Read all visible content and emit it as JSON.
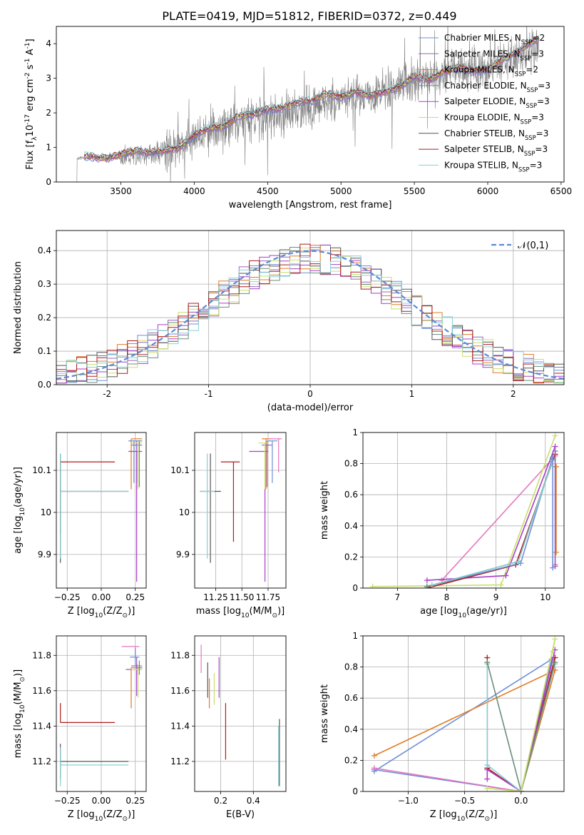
{
  "figure_title": "PLATE=0419, MJD=51812, FIBERID=0372, z=0.449",
  "chart_data": [
    {
      "id": "spectrum",
      "type": "line",
      "title": "PLATE=0419, MJD=51812, FIBERID=0372, z=0.449",
      "xlabel": "wavelength [Angstrom, rest frame]",
      "ylabel": "Flux [f$_\\lambda$10$^{-17}$ erg cm$^{-2}$ s$^{-1}$ A$^{-1}$]",
      "xlim": [
        3060,
        6520
      ],
      "ylim": [
        0,
        4.5
      ],
      "xticks": [
        3500,
        4000,
        4500,
        5000,
        5500,
        6000,
        6500
      ],
      "yticks": [
        0,
        1,
        2,
        3,
        4
      ],
      "grid": false,
      "legend_position": "top-right",
      "observed": {
        "color": "#808080",
        "x_range": [
          3200,
          6350
        ],
        "continuum": [
          [
            3200,
            0.7
          ],
          [
            3500,
            0.7
          ],
          [
            3800,
            0.9
          ],
          [
            4000,
            1.3
          ],
          [
            4300,
            1.75
          ],
          [
            4700,
            2.05
          ],
          [
            5000,
            2.45
          ],
          [
            5300,
            2.6
          ],
          [
            5500,
            2.95
          ],
          [
            5800,
            3.2
          ],
          [
            6000,
            3.25
          ],
          [
            6350,
            3.9
          ]
        ]
      },
      "series": [
        {
          "name": "Chabrier MILES, N$_{SSP}$=2",
          "color": "#6f8fd6"
        },
        {
          "name": "Salpeter MILES, N$_{SSP}$=3",
          "color": "#9467bd"
        },
        {
          "name": "Kroupa MILES, N$_{SSP}$=2",
          "color": "#e07c24"
        },
        {
          "name": "Chabrier ELODIE, N$_{SSP}$=3",
          "color": "#6b8e7a"
        },
        {
          "name": "Salpeter ELODIE, N$_{SSP}$=3",
          "color": "#a83ec9"
        },
        {
          "name": "Kroupa ELODIE, N$_{SSP}$=3",
          "color": "#c8e06a"
        },
        {
          "name": "Chabrier STELIB, N$_{SSP}$=3",
          "color": "#555555"
        },
        {
          "name": "Salpeter STELIB, N$_{SSP}$=3",
          "color": "#b01a1a"
        },
        {
          "name": "Kroupa STELIB, N$_{SSP}$=3",
          "color": "#86cfd6"
        }
      ],
      "model": {
        "x": [
          3250,
          3400,
          3500,
          3600,
          3700,
          3800,
          3900,
          4000,
          4100,
          4200,
          4300,
          4400,
          4500,
          4600,
          4700,
          4800,
          4900,
          5000,
          5100,
          5200,
          5300,
          5400,
          5500,
          5600,
          5700,
          5800,
          5900,
          6000,
          6100,
          6200,
          6300,
          6350
        ],
        "y": [
          0.75,
          0.68,
          0.8,
          0.9,
          0.85,
          0.9,
          1.0,
          1.35,
          1.55,
          1.6,
          1.9,
          1.95,
          2.1,
          2.15,
          2.3,
          2.35,
          2.55,
          2.45,
          2.6,
          2.5,
          2.6,
          2.75,
          3.05,
          2.95,
          3.2,
          3.3,
          3.2,
          3.25,
          3.55,
          3.75,
          4.05,
          4.15
        ]
      }
    },
    {
      "id": "residuals",
      "type": "line",
      "xlabel": "(data-model)/error",
      "ylabel": "Normed distribution",
      "xlim": [
        -2.5,
        2.5
      ],
      "ylim": [
        0,
        0.46
      ],
      "xticks": [
        -2,
        -1,
        0,
        1,
        2
      ],
      "yticks": [
        0.0,
        0.1,
        0.2,
        0.3,
        0.4
      ],
      "grid": true,
      "legend_position": "top-right",
      "legend": [
        {
          "name": "$\\mathcal{N}(0,1)$",
          "color": "#5b8ad6",
          "dashed": true
        }
      ],
      "bin_width": 0.1,
      "histogram_colors": [
        "#6f8fd6",
        "#9467bd",
        "#e07c24",
        "#6b8e7a",
        "#a83ec9",
        "#c8e06a",
        "#555555",
        "#b01a1a",
        "#86cfd6"
      ]
    },
    {
      "id": "age_vs_Z",
      "type": "scatter",
      "xlabel": "Z [log$_{10}$(Z/Z$_\\odot$)]",
      "ylabel": "age  [log$_{10}$(age/yr)]",
      "xlim": [
        -0.33,
        0.33
      ],
      "ylim": [
        9.82,
        10.19
      ],
      "xticks": [
        -0.25,
        0.0,
        0.25
      ],
      "xticklabels": [
        "−0.25",
        "0.00",
        "0.25"
      ],
      "yticks": [
        9.9,
        10.0,
        10.1
      ],
      "grid": true,
      "points": [
        {
          "color": "#b01a1a",
          "x": -0.3,
          "xerr": [
            0,
            0.4
          ],
          "y": 10.12,
          "yerr": [
            0.17,
            0.0
          ]
        },
        {
          "color": "#555555",
          "x": -0.3,
          "xerr": [
            0,
            0.5
          ],
          "y": 10.05,
          "yerr": [
            0.17,
            0.09
          ]
        },
        {
          "color": "#86cfd6",
          "x": -0.3,
          "xerr": [
            0,
            0.5
          ],
          "y": 10.05,
          "yerr": [
            0.16,
            0.09
          ]
        },
        {
          "color": "#e07c24",
          "x": 0.22,
          "xerr": [
            0.0,
            0.08
          ],
          "y": 10.175,
          "yerr": [
            0.12,
            0.0
          ]
        },
        {
          "color": "#9467bd",
          "x": 0.26,
          "xerr": [
            0.04,
            0.04
          ],
          "y": 10.16,
          "yerr": [
            0.09,
            0.01
          ]
        },
        {
          "color": "#a83ec9",
          "x": 0.26,
          "xerr": [
            0.06,
            0.04
          ],
          "y": 10.145,
          "yerr": [
            0.31,
            0.0
          ]
        },
        {
          "color": "#c8e06a",
          "x": 0.27,
          "xerr": [
            0.05,
            0.03
          ],
          "y": 10.165,
          "yerr": [
            0.11,
            0.0
          ]
        },
        {
          "color": "#6b8e7a",
          "x": 0.28,
          "xerr": [
            0.03,
            0.02
          ],
          "y": 10.17,
          "yerr": [
            0.11,
            0.0
          ]
        },
        {
          "color": "#6f8fd6",
          "x": 0.24,
          "xerr": [
            0.04,
            0.05
          ],
          "y": 10.17,
          "yerr": [
            0.1,
            0.0
          ]
        }
      ]
    },
    {
      "id": "age_vs_mass",
      "type": "scatter",
      "xlabel": "mass [log$_{10}$(M/M$_\\odot$)]",
      "ylabel": "",
      "xlim": [
        11.05,
        11.92
      ],
      "ylim": [
        9.82,
        10.19
      ],
      "xticks": [
        11.25,
        11.5,
        11.75
      ],
      "xticklabels": [
        "11.25",
        "11.50",
        "11.75"
      ],
      "yticks": [
        9.9,
        10.0,
        10.1
      ],
      "grid": true,
      "points": [
        {
          "color": "#b01a1a",
          "x": 11.42,
          "xerr": [
            0.12,
            0.06
          ],
          "y": 10.12,
          "yerr": [
            0.19,
            0.0
          ]
        },
        {
          "color": "#555555",
          "x": 11.2,
          "xerr": [
            0.1,
            0.1
          ],
          "y": 10.05,
          "yerr": [
            0.17,
            0.09
          ]
        },
        {
          "color": "#86cfd6",
          "x": 11.17,
          "xerr": [
            0.07,
            0.07
          ],
          "y": 10.05,
          "yerr": [
            0.16,
            0.09
          ]
        },
        {
          "color": "#e07c24",
          "x": 11.73,
          "xerr": [
            0.04,
            0.05
          ],
          "y": 10.175,
          "yerr": [
            0.12,
            0.0
          ]
        },
        {
          "color": "#9467bd",
          "x": 11.74,
          "xerr": [
            0.05,
            0.05
          ],
          "y": 10.16,
          "yerr": [
            0.1,
            0.01
          ]
        },
        {
          "color": "#a83ec9",
          "x": 11.72,
          "xerr": [
            0.15,
            0.03
          ],
          "y": 10.145,
          "yerr": [
            0.31,
            0.0
          ]
        },
        {
          "color": "#c8e06a",
          "x": 11.72,
          "xerr": [
            0.06,
            0.03
          ],
          "y": 10.165,
          "yerr": [
            0.11,
            0.0
          ]
        },
        {
          "color": "#6f8fd6",
          "x": 11.79,
          "xerr": [
            0.05,
            0.05
          ],
          "y": 10.17,
          "yerr": [
            0.1,
            0.0
          ]
        },
        {
          "color": "#e377c2",
          "x": 11.85,
          "xerr": [
            0.08,
            0.03
          ],
          "y": 10.175,
          "yerr": [
            0.08,
            0.0
          ]
        }
      ]
    },
    {
      "id": "massweight_vs_age",
      "type": "line",
      "xlabel": "age  [log$_{10}$(age/yr)]",
      "ylabel": "mass weight",
      "xlim": [
        6.3,
        10.38
      ],
      "ylim": [
        0,
        1.0
      ],
      "xticks": [
        7,
        8,
        9,
        10
      ],
      "yticks": [
        0.0,
        0.2,
        0.4,
        0.6,
        0.8,
        1.0
      ],
      "grid": true,
      "series": [
        {
          "color": "#e377c2",
          "x": [
            7.9,
            10.2
          ],
          "y": [
            0.05,
            0.85
          ]
        },
        {
          "color": "#e377c2",
          "x": [
            10.2,
            10.2
          ],
          "y": [
            0.85,
            0.15
          ]
        },
        {
          "color": "#c8e06a",
          "x": [
            6.5,
            9.1,
            10.2
          ],
          "y": [
            0.01,
            0.02,
            0.98
          ]
        },
        {
          "color": "#a83ec9",
          "x": [
            7.6,
            9.2,
            10.2
          ],
          "y": [
            0.05,
            0.08,
            0.91
          ]
        },
        {
          "color": "#b01a1a",
          "x": [
            7.6,
            9.4,
            10.2
          ],
          "y": [
            0.0,
            0.15,
            0.86
          ]
        },
        {
          "color": "#6f8fd6",
          "x": [
            7.6,
            9.5,
            10.15
          ],
          "y": [
            0.01,
            0.16,
            0.84
          ]
        },
        {
          "color": "#6b8e7a",
          "x": [
            7.6,
            9.45,
            10.15
          ],
          "y": [
            0.01,
            0.17,
            0.83
          ]
        },
        {
          "color": "#86cfd6",
          "x": [
            7.7,
            9.45,
            10.15
          ],
          "y": [
            0.02,
            0.17,
            0.82
          ]
        },
        {
          "color": "#e07c24",
          "x": [
            10.22,
            10.22
          ],
          "y": [
            0.78,
            0.23
          ]
        },
        {
          "color": "#6f8fd6",
          "x": [
            10.15,
            10.15
          ],
          "y": [
            0.84,
            0.13
          ]
        },
        {
          "color": "#9467bd",
          "x": [
            10.2,
            10.2
          ],
          "y": [
            0.88,
            0.14
          ]
        }
      ]
    },
    {
      "id": "mass_vs_Z",
      "type": "scatter",
      "xlabel": "Z [log$_{10}$(Z/Z$_\\odot$)]",
      "ylabel": "mass [log$_{10}$(M/M$_\\odot$)]",
      "xlim": [
        -0.33,
        0.33
      ],
      "ylim": [
        11.03,
        11.91
      ],
      "xticks": [
        -0.25,
        0.0,
        0.25
      ],
      "xticklabels": [
        "−0.25",
        "0.00",
        "0.25"
      ],
      "yticks": [
        11.2,
        11.4,
        11.6,
        11.8
      ],
      "grid": true,
      "points": [
        {
          "color": "#b01a1a",
          "x": -0.3,
          "xerr": [
            0,
            0.4
          ],
          "y": 11.42,
          "yerr": [
            0.0,
            0.11
          ]
        },
        {
          "color": "#555555",
          "x": -0.3,
          "xerr": [
            0,
            0.5
          ],
          "y": 11.2,
          "yerr": [
            0.1,
            0.1
          ]
        },
        {
          "color": "#86cfd6",
          "x": -0.3,
          "xerr": [
            0,
            0.5
          ],
          "y": 11.18,
          "yerr": [
            0.12,
            0.1
          ]
        },
        {
          "color": "#e377c2",
          "x": 0.25,
          "xerr": [
            0.1,
            0.03
          ],
          "y": 11.85,
          "yerr": [
            0.07,
            0.0
          ]
        },
        {
          "color": "#6f8fd6",
          "x": 0.25,
          "xerr": [
            0.04,
            0.03
          ],
          "y": 11.79,
          "yerr": [
            0.05,
            0.05
          ]
        },
        {
          "color": "#9467bd",
          "x": 0.26,
          "xerr": [
            0.04,
            0.04
          ],
          "y": 11.74,
          "yerr": [
            0.05,
            0.05
          ]
        },
        {
          "color": "#a83ec9",
          "x": 0.26,
          "xerr": [
            0.08,
            0.04
          ],
          "y": 11.72,
          "yerr": [
            0.15,
            0.03
          ]
        },
        {
          "color": "#e07c24",
          "x": 0.22,
          "xerr": [
            0.0,
            0.08
          ],
          "y": 11.73,
          "yerr": [
            0.23,
            0.0
          ]
        },
        {
          "color": "#c8e06a",
          "x": 0.27,
          "xerr": [
            0.05,
            0.03
          ],
          "y": 11.72,
          "yerr": [
            0.16,
            0.03
          ]
        },
        {
          "color": "#6b8e7a",
          "x": 0.28,
          "xerr": [
            0.03,
            0.02
          ],
          "y": 11.73,
          "yerr": [
            0.04,
            0.04
          ]
        }
      ]
    },
    {
      "id": "mass_vs_ebv",
      "type": "scatter",
      "xlabel": "E(B-V)",
      "ylabel": "",
      "xlim": [
        0.04,
        0.6
      ],
      "ylim": [
        11.03,
        11.91
      ],
      "xticks": [
        0.2,
        0.4
      ],
      "xticklabels": [
        "0.2",
        "0.4"
      ],
      "yticks": [
        11.2,
        11.4,
        11.6,
        11.8
      ],
      "grid": true,
      "points": [
        {
          "color": "#e377c2",
          "x": 0.08,
          "y": 11.79,
          "yerr": [
            0.09,
            0.07
          ]
        },
        {
          "color": "#555555",
          "x": 0.12,
          "y": 11.66,
          "yerr": [
            0.1,
            0.1
          ]
        },
        {
          "color": "#e07c24",
          "x": 0.13,
          "y": 11.59,
          "yerr": [
            0.09,
            0.08
          ]
        },
        {
          "color": "#c8e06a",
          "x": 0.16,
          "y": 11.62,
          "yerr": [
            0.1,
            0.08
          ]
        },
        {
          "color": "#a83ec9",
          "x": 0.19,
          "y": 11.67,
          "yerr": [
            0.11,
            0.12
          ]
        },
        {
          "color": "#b01a1a",
          "x": 0.23,
          "y": 11.37,
          "yerr": [
            0.16,
            0.16
          ]
        },
        {
          "color": "#555555",
          "x": 0.56,
          "y": 11.2,
          "yerr": [
            0.14,
            0.24
          ]
        },
        {
          "color": "#86cfd6",
          "x": 0.555,
          "y": 11.2,
          "yerr": [
            0.14,
            0.2
          ]
        }
      ]
    },
    {
      "id": "massweight_vs_Z",
      "type": "line",
      "xlabel": "Z [log$_{10}$(Z/Z$_\\odot$)]",
      "ylabel": "mass weight",
      "xlim": [
        -1.4,
        0.38
      ],
      "ylim": [
        0,
        1.0
      ],
      "xticks": [
        -1.0,
        -0.5,
        0.0
      ],
      "xticklabels": [
        "−1.0",
        "−0.5",
        "0.0"
      ],
      "yticks": [
        0.0,
        0.2,
        0.4,
        0.6,
        0.8,
        1.0
      ],
      "grid": true,
      "series": [
        {
          "color": "#6f8fd6",
          "x": [
            -1.3,
            0.27,
            0.0,
            -1.3
          ],
          "y": [
            0.13,
            0.85,
            0.0,
            0.14
          ]
        },
        {
          "color": "#e07c24",
          "x": [
            -1.3,
            0.3,
            0.0
          ],
          "y": [
            0.23,
            0.78,
            0.0
          ]
        },
        {
          "color": "#e377c2",
          "x": [
            -1.3,
            0.0,
            0.3
          ],
          "y": [
            0.15,
            0.0,
            0.86
          ]
        },
        {
          "color": "#b01a1a",
          "x": [
            -0.3,
            -0.3,
            0.0,
            0.3
          ],
          "y": [
            0.86,
            0.15,
            0.0,
            0.86
          ]
        },
        {
          "color": "#a83ec9",
          "x": [
            -0.3,
            -0.3,
            0.0,
            0.3
          ],
          "y": [
            0.08,
            0.14,
            0.0,
            0.91
          ]
        },
        {
          "color": "#86cfd6",
          "x": [
            -0.3,
            -0.3,
            0.0,
            0.3
          ],
          "y": [
            0.82,
            0.17,
            0.0,
            0.82
          ]
        },
        {
          "color": "#6b8e7a",
          "x": [
            -0.3,
            0.0,
            0.3
          ],
          "y": [
            0.83,
            0.0,
            0.83
          ]
        },
        {
          "color": "#c8e06a",
          "x": [
            -0.3,
            0.0,
            0.3,
            0.28
          ],
          "y": [
            0.02,
            0.0,
            0.98,
            0.9
          ]
        }
      ]
    }
  ]
}
